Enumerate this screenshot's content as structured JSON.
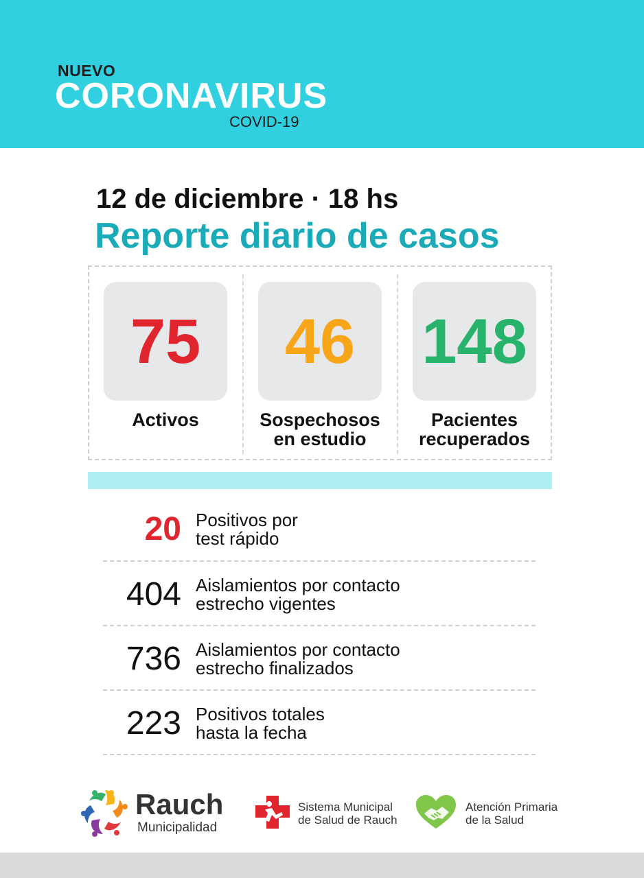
{
  "header": {
    "nuevo": "NUEVO",
    "coronavirus": "CORONAVIRUS",
    "covid": "COVID-19",
    "background_color": "#31d0e0"
  },
  "report": {
    "date_line": "12 de diciembre · 18 hs",
    "title": "Reporte diario de casos"
  },
  "stats": [
    {
      "value": "75",
      "label_line1": "Activos",
      "label_line2": "",
      "color": "#e0252f"
    },
    {
      "value": "46",
      "label_line1": "Sospechosos",
      "label_line2": "en estudio",
      "color": "#f9a51a"
    },
    {
      "value": "148",
      "label_line1": "Pacientes",
      "label_line2": "recuperados",
      "color": "#27b36c"
    }
  ],
  "rows": [
    {
      "value": "20",
      "line1": "Positivos por",
      "line2": "test rápido",
      "color": "#e0252f"
    },
    {
      "value": "404",
      "line1": "Aislamientos por contacto",
      "line2": "estrecho vigentes",
      "color": "#111111"
    },
    {
      "value": "736",
      "line1": "Aislamientos por contacto",
      "line2": "estrecho finalizados",
      "color": "#111111"
    },
    {
      "value": "223",
      "line1": "Positivos totales",
      "line2": "hasta la fecha",
      "color": "#111111"
    }
  ],
  "footer": {
    "rauch_name": "Rauch",
    "rauch_sub": "Municipalidad",
    "sistema_line1": "Sistema Municipal",
    "sistema_line2": "de Salud de Rauch",
    "atencion_line1": "Atención Primaria",
    "atencion_line2": "de la Salud",
    "icons": [
      "rauch-logo-icon",
      "health-cross-icon",
      "handshake-heart-icon"
    ]
  }
}
